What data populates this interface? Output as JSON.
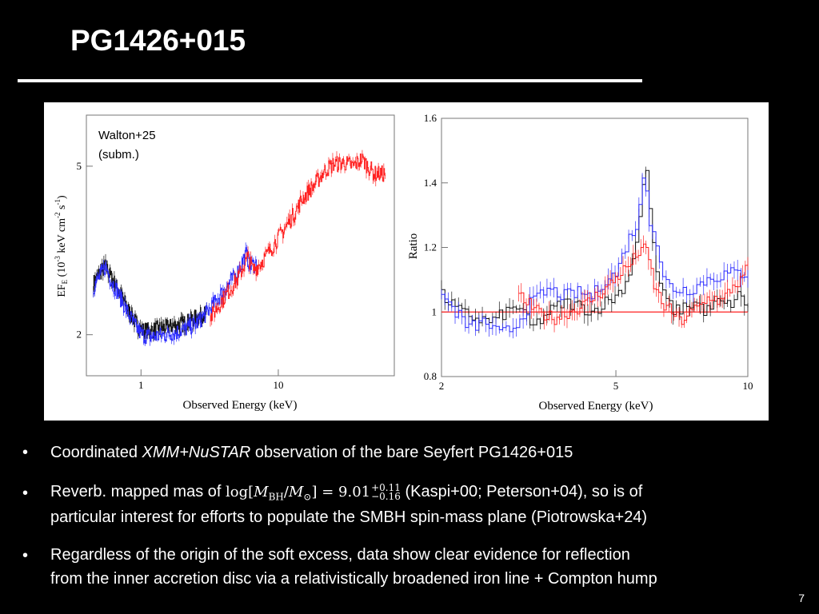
{
  "slide": {
    "title": "PG1426+015",
    "page_number": "7",
    "colors": {
      "background": "#000000",
      "text": "#ffffff",
      "black_data": "#111111",
      "blue_data": "#2a2aff",
      "red_data": "#ff2020"
    }
  },
  "figure": {
    "annotation_line1": "Walton+25",
    "annotation_line2": "(subm.)"
  },
  "chart_data": [
    {
      "type": "line",
      "title": "",
      "xlabel": "Observed Energy (keV)",
      "ylabel": "EF_E (10^-3 keV cm^-2 s^-1)",
      "ylabel_parts": {
        "ef": "EF",
        "sub_e": "E",
        "open": " (10",
        "exp": "-3",
        "kev": " keV cm",
        "exp2": "-2",
        "s": " s",
        "exp3": "-1",
        "close": ")"
      },
      "xscale": "log",
      "yscale": "log",
      "xlim": [
        0.4,
        70
      ],
      "ylim": [
        1.6,
        6.6
      ],
      "xticks": [
        {
          "value": 1,
          "label": "1"
        },
        {
          "value": 10,
          "label": "10"
        }
      ],
      "yticks": [
        {
          "value": 2,
          "label": "2"
        },
        {
          "value": 5,
          "label": "5"
        }
      ],
      "series": [
        {
          "name": "XMM black",
          "color": "#111111",
          "x": [
            0.45,
            0.5,
            0.55,
            0.6,
            0.7,
            0.8,
            0.9,
            1.0,
            1.2,
            1.5,
            2.0,
            2.5,
            3.0
          ],
          "y": [
            2.65,
            2.8,
            2.9,
            2.75,
            2.5,
            2.3,
            2.15,
            2.05,
            2.05,
            2.08,
            2.12,
            2.2,
            2.25
          ]
        },
        {
          "name": "XMM blue",
          "color": "#2a2aff",
          "x": [
            0.45,
            0.5,
            0.55,
            0.6,
            0.7,
            0.8,
            0.9,
            1.0,
            1.2,
            1.5,
            2.0,
            2.5,
            3.0,
            3.5,
            4.0,
            5.0,
            5.8,
            6.2,
            7.0
          ],
          "y": [
            2.6,
            2.75,
            2.9,
            2.7,
            2.45,
            2.25,
            2.1,
            2.0,
            1.98,
            2.0,
            2.05,
            2.12,
            2.25,
            2.4,
            2.55,
            2.8,
            3.1,
            2.9,
            2.95
          ]
        },
        {
          "name": "NuSTAR red",
          "color": "#ff2020",
          "x": [
            3.2,
            4,
            5,
            6,
            6.5,
            7,
            8,
            10,
            12,
            15,
            18,
            22,
            25,
            30,
            35,
            40,
            50,
            60
          ],
          "y": [
            2.2,
            2.45,
            2.7,
            3.05,
            2.85,
            2.9,
            3.05,
            3.4,
            3.7,
            4.2,
            4.5,
            4.9,
            5.05,
            5.1,
            5.0,
            5.2,
            4.8,
            4.8
          ]
        }
      ]
    },
    {
      "type": "line",
      "title": "",
      "xlabel": "Observed Energy (keV)",
      "ylabel": "Ratio",
      "xscale": "log",
      "xlim": [
        2,
        10
      ],
      "ylim": [
        0.8,
        1.6
      ],
      "xticks": [
        {
          "value": 2,
          "label": "2"
        },
        {
          "value": 5,
          "label": "5"
        },
        {
          "value": 10,
          "label": "10"
        }
      ],
      "yticks": [
        {
          "value": 0.8,
          "label": "0.8"
        },
        {
          "value": 1,
          "label": "1"
        },
        {
          "value": 1.2,
          "label": "1.2"
        },
        {
          "value": 1.4,
          "label": "1.4"
        },
        {
          "value": 1.6,
          "label": "1.6"
        }
      ],
      "reference_line": 1.0,
      "series": [
        {
          "name": "black",
          "color": "#111111",
          "x": [
            2.0,
            2.2,
            2.4,
            2.6,
            2.8,
            3.0,
            3.2,
            3.5,
            3.8,
            4.1,
            4.4,
            4.7,
            5.0,
            5.3,
            5.6,
            5.8,
            5.9,
            6.1,
            6.4,
            6.8,
            7.2,
            7.6,
            8.0,
            8.5,
            9.0,
            9.5,
            10.0
          ],
          "y": [
            1.05,
            1.0,
            0.98,
            0.97,
            1.0,
            1.02,
            0.95,
            1.0,
            1.03,
            1.02,
            1.0,
            1.03,
            1.05,
            1.1,
            1.25,
            1.45,
            1.4,
            1.15,
            1.05,
            1.0,
            1.02,
            1.03,
            1.0,
            1.03,
            1.02,
            1.05,
            1.02
          ]
        },
        {
          "name": "blue",
          "color": "#2a2aff",
          "x": [
            2.0,
            2.15,
            2.3,
            2.5,
            2.7,
            2.9,
            3.2,
            3.5,
            3.8,
            4.1,
            4.4,
            4.7,
            5.0,
            5.3,
            5.6,
            5.8,
            5.9,
            6.1,
            6.4,
            6.8,
            7.4,
            8.0,
            9.0,
            10.0
          ],
          "y": [
            1.05,
            1.0,
            0.95,
            0.97,
            0.93,
            0.95,
            1.03,
            1.07,
            1.05,
            1.06,
            1.05,
            1.1,
            1.12,
            1.22,
            1.28,
            1.47,
            1.3,
            1.25,
            1.1,
            1.07,
            1.07,
            1.1,
            1.12,
            1.12
          ]
        },
        {
          "name": "red",
          "color": "#ff2020",
          "x": [
            3.0,
            3.3,
            3.6,
            3.9,
            4.2,
            4.5,
            4.8,
            5.1,
            5.4,
            5.7,
            5.9,
            6.1,
            6.4,
            6.7,
            7.0,
            7.4,
            7.8,
            8.2,
            8.7,
            9.2,
            9.7,
            10.0
          ],
          "y": [
            1.05,
            1.0,
            0.98,
            1.0,
            1.02,
            1.05,
            1.08,
            1.12,
            1.15,
            1.2,
            1.18,
            1.08,
            1.02,
            1.0,
            0.97,
            1.0,
            1.02,
            1.05,
            1.03,
            1.08,
            1.1,
            1.15
          ]
        }
      ]
    }
  ],
  "bullets": {
    "b1": {
      "marker": "•",
      "pre": "Coordinated ",
      "italic": "XMM+NuSTAR",
      "post": " observation of the bare Seyfert PG1426+015"
    },
    "b2": {
      "marker": "•",
      "pre": "Reverb. mapped mas of ",
      "log": "log",
      "lbr": "[",
      "m": "M",
      "msub": "BH",
      "slash": "/",
      "m2": "M",
      "m2sub": "⊙",
      "rbr": "]",
      "eq": " = 9.01",
      "sup": "+0.11",
      "sub": "−0.16",
      "post": " (Kaspi+00; Peterson+04), so is of",
      "line2": "particular interest for efforts to populate the SMBH spin-mass plane (Piotrowska+24)"
    },
    "b3": {
      "marker": "•",
      "line1": "Regardless of the origin of the soft excess, data show clear evidence for reflection",
      "line2": "from the inner accretion disc via a relativistically broadened iron line + Compton hump"
    }
  }
}
